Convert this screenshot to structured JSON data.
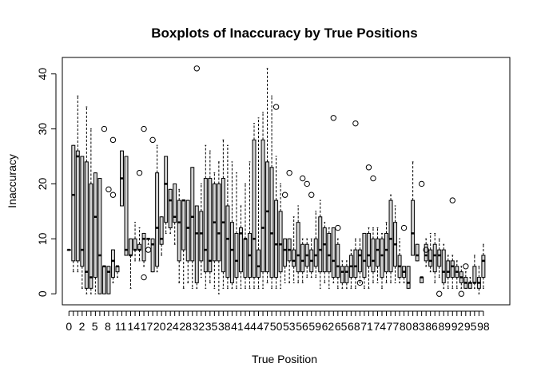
{
  "chart_data": {
    "type": "boxplot",
    "title": "Boxplots of Inaccuracy by True Positions",
    "xlabel": "True Position",
    "ylabel": "Inaccuracy",
    "ylim": [
      -2,
      43
    ],
    "xlim": [
      -1.5,
      100
    ],
    "y_ticks": [
      0,
      10,
      20,
      30,
      40
    ],
    "x_tick_labels": [
      "0",
      "2",
      "5",
      "8",
      "11",
      "14",
      "17",
      "20",
      "24",
      "28",
      "32",
      "35",
      "38",
      "41",
      "44",
      "47",
      "50",
      "53",
      "56",
      "59",
      "62",
      "65",
      "68",
      "71",
      "74",
      "77",
      "80",
      "83",
      "86",
      "89",
      "92",
      "95",
      "98"
    ],
    "box_fill": "#d3d3d3",
    "stroke": "#000000",
    "boxes": [
      {
        "x": 0,
        "min": 8,
        "q1": 8,
        "med": 8,
        "q3": 8,
        "max": 8
      },
      {
        "x": 1,
        "min": 4,
        "q1": 6,
        "med": 18,
        "q3": 27,
        "max": 27
      },
      {
        "x": 2,
        "min": 4,
        "q1": 6,
        "med": 25,
        "q3": 26,
        "max": 36
      },
      {
        "x": 3,
        "min": 1,
        "q1": 5,
        "med": 8,
        "q3": 25,
        "max": 25
      },
      {
        "x": 4,
        "min": 0,
        "q1": 1,
        "med": 4,
        "q3": 24,
        "max": 34
      },
      {
        "x": 5,
        "min": 0,
        "q1": 1,
        "med": 3,
        "q3": 20,
        "max": 30
      },
      {
        "x": 6,
        "min": 0,
        "q1": 3,
        "med": 14,
        "q3": 22,
        "max": 22
      },
      {
        "x": 7,
        "min": 0,
        "q1": 0,
        "med": 7,
        "q3": 21,
        "max": 21
      },
      {
        "x": 8,
        "min": 0,
        "q1": 0,
        "med": 5,
        "q3": 5,
        "max": 5,
        "outliers": [
          30
        ]
      },
      {
        "x": 9,
        "min": 0,
        "q1": 0,
        "med": 4,
        "q3": 5,
        "max": 5,
        "outliers": [
          19
        ]
      },
      {
        "x": 10,
        "min": 2,
        "q1": 3,
        "med": 6,
        "q3": 8,
        "max": 8,
        "outliers": [
          18,
          28
        ]
      },
      {
        "x": 11,
        "min": 3,
        "q1": 4,
        "med": 5,
        "q3": 5,
        "max": 5
      },
      {
        "x": 12,
        "min": 16,
        "q1": 16,
        "med": 21,
        "q3": 26,
        "max": 26
      },
      {
        "x": 13,
        "min": 7,
        "q1": 7,
        "med": 8,
        "q3": 25,
        "max": 25
      },
      {
        "x": 14,
        "min": 1,
        "q1": 7,
        "med": 7,
        "q3": 10,
        "max": 10
      },
      {
        "x": 15,
        "min": 6,
        "q1": 8,
        "med": 8,
        "q3": 10,
        "max": 13
      },
      {
        "x": 16,
        "min": 6,
        "q1": 8,
        "med": 8,
        "q3": 9,
        "max": 12,
        "outliers": [
          22
        ]
      },
      {
        "x": 17,
        "min": 5,
        "q1": 6,
        "med": 10,
        "q3": 11,
        "max": 11,
        "outliers": [
          30,
          3
        ]
      },
      {
        "x": 18,
        "min": 9,
        "q1": 10,
        "med": 10,
        "q3": 10,
        "max": 10,
        "outliers": [
          8
        ]
      },
      {
        "x": 19,
        "min": 4,
        "q1": 4,
        "med": 9,
        "q3": 10,
        "max": 10,
        "outliers": [
          28
        ]
      },
      {
        "x": 20,
        "min": 4,
        "q1": 5,
        "med": 12,
        "q3": 22,
        "max": 27
      },
      {
        "x": 21,
        "min": 7,
        "q1": 9,
        "med": 10,
        "q3": 14,
        "max": 14
      },
      {
        "x": 22,
        "min": 11,
        "q1": 13,
        "med": 20,
        "q3": 25,
        "max": 25
      },
      {
        "x": 23,
        "min": 11,
        "q1": 12,
        "med": 17,
        "q3": 19,
        "max": 19
      },
      {
        "x": 24,
        "min": 9,
        "q1": 13,
        "med": 14,
        "q3": 20,
        "max": 20
      },
      {
        "x": 25,
        "min": 2,
        "q1": 6,
        "med": 13,
        "q3": 17,
        "max": 19
      },
      {
        "x": 26,
        "min": 1,
        "q1": 8,
        "med": 17,
        "q3": 17,
        "max": 17
      },
      {
        "x": 27,
        "min": 2,
        "q1": 6,
        "med": 12,
        "q3": 17,
        "max": 17
      },
      {
        "x": 28,
        "min": 1,
        "q1": 6,
        "med": 14,
        "q3": 23,
        "max": 23
      },
      {
        "x": 29,
        "min": 1,
        "q1": 2,
        "med": 11,
        "q3": 16,
        "max": 16,
        "outliers": [
          41
        ]
      },
      {
        "x": 30,
        "min": 3,
        "q1": 6,
        "med": 11,
        "q3": 15,
        "max": 20
      },
      {
        "x": 31,
        "min": 1,
        "q1": 4,
        "med": 8,
        "q3": 21,
        "max": 27
      },
      {
        "x": 32,
        "min": 2,
        "q1": 4,
        "med": 6,
        "q3": 21,
        "max": 26
      },
      {
        "x": 33,
        "min": 1,
        "q1": 6,
        "med": 13,
        "q3": 20,
        "max": 22
      },
      {
        "x": 34,
        "min": 0,
        "q1": 6,
        "med": 11,
        "q3": 20,
        "max": 24
      },
      {
        "x": 35,
        "min": 1,
        "q1": 4,
        "med": 13,
        "q3": 21,
        "max": 28
      },
      {
        "x": 36,
        "min": 1,
        "q1": 3,
        "med": 10,
        "q3": 16,
        "max": 27
      },
      {
        "x": 37,
        "min": 1,
        "q1": 2,
        "med": 8,
        "q3": 13,
        "max": 24
      },
      {
        "x": 38,
        "min": 1,
        "q1": 3,
        "med": 6,
        "q3": 11,
        "max": 22
      },
      {
        "x": 39,
        "min": 1,
        "q1": 4,
        "med": 11,
        "q3": 12,
        "max": 16
      },
      {
        "x": 40,
        "min": 1,
        "q1": 3,
        "med": 10,
        "q3": 10,
        "max": 20
      },
      {
        "x": 41,
        "min": 1,
        "q1": 3,
        "med": 7,
        "q3": 11,
        "max": 24
      },
      {
        "x": 42,
        "min": 1,
        "q1": 3,
        "med": 10,
        "q3": 28,
        "max": 31
      },
      {
        "x": 43,
        "min": 1,
        "q1": 3,
        "med": 5,
        "q3": 8,
        "max": 32
      },
      {
        "x": 44,
        "min": 1,
        "q1": 4,
        "med": 12,
        "q3": 28,
        "max": 33
      },
      {
        "x": 45,
        "min": 2,
        "q1": 4,
        "med": 15,
        "q3": 24,
        "max": 41
      },
      {
        "x": 46,
        "min": 1,
        "q1": 3,
        "med": 11,
        "q3": 23,
        "max": 36
      },
      {
        "x": 47,
        "min": 1,
        "q1": 3,
        "med": 9,
        "q3": 17,
        "max": 25,
        "outliers": [
          34
        ]
      },
      {
        "x": 48,
        "min": 1,
        "q1": 4,
        "med": 9,
        "q3": 15,
        "max": 20
      },
      {
        "x": 49,
        "min": 2,
        "q1": 5,
        "med": 8,
        "q3": 10,
        "max": 10,
        "outliers": [
          18
        ]
      },
      {
        "x": 50,
        "min": 2,
        "q1": 6,
        "med": 8,
        "q3": 10,
        "max": 10,
        "outliers": [
          22
        ]
      },
      {
        "x": 51,
        "min": 2,
        "q1": 5,
        "med": 6,
        "q3": 8,
        "max": 14
      },
      {
        "x": 52,
        "min": 2,
        "q1": 4,
        "med": 7,
        "q3": 13,
        "max": 16
      },
      {
        "x": 53,
        "min": 2,
        "q1": 4,
        "med": 6,
        "q3": 9,
        "max": 10,
        "outliers": [
          21
        ]
      },
      {
        "x": 54,
        "min": 3,
        "q1": 5,
        "med": 7,
        "q3": 9,
        "max": 10,
        "outliers": [
          20
        ]
      },
      {
        "x": 55,
        "min": 3,
        "q1": 4,
        "med": 6,
        "q3": 8,
        "max": 10,
        "outliers": [
          18
        ]
      },
      {
        "x": 56,
        "min": 3,
        "q1": 5,
        "med": 7,
        "q3": 10,
        "max": 15
      },
      {
        "x": 57,
        "min": 1,
        "q1": 4,
        "med": 8,
        "q3": 14,
        "max": 17
      },
      {
        "x": 58,
        "min": 2,
        "q1": 4,
        "med": 9,
        "q3": 12,
        "max": 13
      },
      {
        "x": 59,
        "min": 1,
        "q1": 4,
        "med": 7,
        "q3": 11,
        "max": 12
      },
      {
        "x": 60,
        "min": 2,
        "q1": 3,
        "med": 6,
        "q3": 12,
        "max": 12,
        "outliers": [
          32
        ]
      },
      {
        "x": 61,
        "min": 1,
        "q1": 3,
        "med": 5,
        "q3": 9,
        "max": 10,
        "outliers": [
          12
        ]
      },
      {
        "x": 62,
        "min": 1,
        "q1": 2,
        "med": 4,
        "q3": 5,
        "max": 6
      },
      {
        "x": 63,
        "min": 1,
        "q1": 2,
        "med": 4,
        "q3": 5,
        "max": 6
      },
      {
        "x": 64,
        "min": 1,
        "q1": 3,
        "med": 5,
        "q3": 7,
        "max": 8
      },
      {
        "x": 65,
        "min": 1,
        "q1": 3,
        "med": 5,
        "q3": 8,
        "max": 10,
        "outliers": [
          31
        ]
      },
      {
        "x": 66,
        "min": 2,
        "q1": 4,
        "med": 7,
        "q3": 8,
        "max": 10,
        "outliers": [
          2
        ]
      },
      {
        "x": 67,
        "min": 1,
        "q1": 3,
        "med": 6,
        "q3": 11,
        "max": 11
      },
      {
        "x": 68,
        "min": 1,
        "q1": 5,
        "med": 7,
        "q3": 11,
        "max": 12,
        "outliers": [
          23
        ]
      },
      {
        "x": 69,
        "min": 2,
        "q1": 4,
        "med": 6,
        "q3": 10,
        "max": 12,
        "outliers": [
          21
        ]
      },
      {
        "x": 70,
        "min": 2,
        "q1": 5,
        "med": 8,
        "q3": 10,
        "max": 12
      },
      {
        "x": 71,
        "min": 1,
        "q1": 3,
        "med": 7,
        "q3": 10,
        "max": 11
      },
      {
        "x": 72,
        "min": 2,
        "q1": 4,
        "med": 8,
        "q3": 11,
        "max": 13
      },
      {
        "x": 73,
        "min": 2,
        "q1": 4,
        "med": 10,
        "q3": 17,
        "max": 18
      },
      {
        "x": 74,
        "min": 2,
        "q1": 5,
        "med": 9,
        "q3": 13,
        "max": 16
      },
      {
        "x": 75,
        "min": 2,
        "q1": 3,
        "med": 5,
        "q3": 7,
        "max": 10
      },
      {
        "x": 76,
        "min": 2,
        "q1": 3,
        "med": 4,
        "q3": 5,
        "max": 5,
        "outliers": [
          12
        ]
      },
      {
        "x": 77,
        "min": 1,
        "q1": 1,
        "med": 2,
        "q3": 5,
        "max": 5
      },
      {
        "x": 78,
        "min": 7,
        "q1": 7,
        "med": 11,
        "q3": 17,
        "max": 24
      },
      {
        "x": 79,
        "min": 6,
        "q1": 6,
        "med": 7,
        "q3": 9,
        "max": 9
      },
      {
        "x": 80,
        "min": 2,
        "q1": 2,
        "med": 3,
        "q3": 3,
        "max": 3,
        "outliers": [
          20
        ]
      },
      {
        "x": 81,
        "min": 5,
        "q1": 6,
        "med": 7,
        "q3": 9,
        "max": 10,
        "outliers": [
          8
        ]
      },
      {
        "x": 82,
        "min": 4,
        "q1": 5,
        "med": 6,
        "q3": 8,
        "max": 11
      },
      {
        "x": 83,
        "min": 2,
        "q1": 4,
        "med": 7,
        "q3": 9,
        "max": 11
      },
      {
        "x": 84,
        "min": 3,
        "q1": 5,
        "med": 7,
        "q3": 8,
        "max": 10,
        "outliers": [
          0
        ]
      },
      {
        "x": 85,
        "min": 1,
        "q1": 2,
        "med": 4,
        "q3": 8,
        "max": 9
      },
      {
        "x": 86,
        "min": 1,
        "q1": 3,
        "med": 4,
        "q3": 6,
        "max": 7
      },
      {
        "x": 87,
        "min": 1,
        "q1": 3,
        "med": 5,
        "q3": 6,
        "max": 7,
        "outliers": [
          17
        ]
      },
      {
        "x": 88,
        "min": 1,
        "q1": 3,
        "med": 4,
        "q3": 5,
        "max": 6
      },
      {
        "x": 89,
        "min": 1,
        "q1": 2,
        "med": 3,
        "q3": 4,
        "max": 5,
        "outliers": [
          0
        ]
      },
      {
        "x": 90,
        "min": 1,
        "q1": 1,
        "med": 2,
        "q3": 3,
        "max": 4,
        "outliers": [
          5
        ]
      },
      {
        "x": 91,
        "min": 1,
        "q1": 1,
        "med": 2,
        "q3": 2,
        "max": 3
      },
      {
        "x": 92,
        "min": 1,
        "q1": 2,
        "med": 2,
        "q3": 5,
        "max": 7
      },
      {
        "x": 93,
        "min": 0,
        "q1": 1,
        "med": 2,
        "q3": 3,
        "max": 5
      },
      {
        "x": 94,
        "min": 1,
        "q1": 3,
        "med": 6,
        "q3": 7,
        "max": 9
      }
    ]
  }
}
